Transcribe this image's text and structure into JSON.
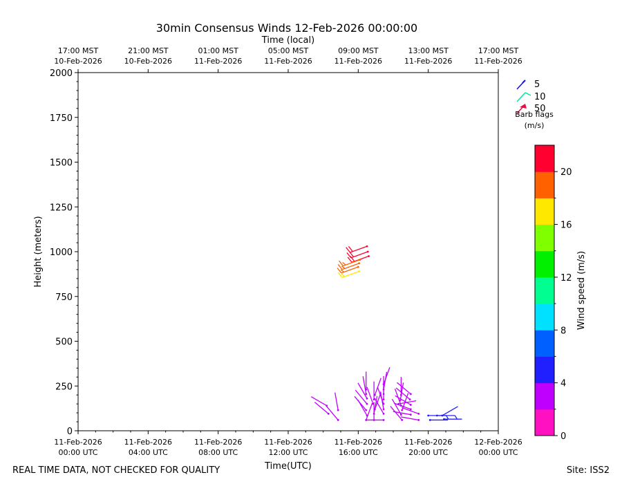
{
  "chart_data": {
    "type": "scatter",
    "title": "30min Consensus Winds 12-Feb-2026 00:00:00",
    "top_axis_title": "Time (local)",
    "xlabel": "Time(UTC)",
    "ylabel": "Height (meters)",
    "ylim": [
      0,
      2000
    ],
    "yticks": [
      0,
      250,
      500,
      750,
      1000,
      1250,
      1500,
      1750,
      2000
    ],
    "xlim_hours": [
      0,
      48
    ],
    "bottom_ticks": [
      {
        "hour": 0,
        "line1": "11-Feb-2026",
        "line2": "00:00 UTC"
      },
      {
        "hour": 8,
        "line1": "11-Feb-2026",
        "line2": "04:00 UTC"
      },
      {
        "hour": 16,
        "line1": "11-Feb-2026",
        "line2": "08:00 UTC"
      },
      {
        "hour": 24,
        "line1": "11-Feb-2026",
        "line2": "12:00 UTC"
      },
      {
        "hour": 32,
        "line1": "11-Feb-2026",
        "line2": "16:00 UTC"
      },
      {
        "hour": 40,
        "line1": "11-Feb-2026",
        "line2": "20:00 UTC"
      },
      {
        "hour": 48,
        "line1": "12-Feb-2026",
        "line2": "00:00 UTC"
      }
    ],
    "top_ticks": [
      {
        "hour": 0,
        "line1": "17:00 MST",
        "line2": "10-Feb-2026"
      },
      {
        "hour": 8,
        "line1": "21:00 MST",
        "line2": "10-Feb-2026"
      },
      {
        "hour": 16,
        "line1": "01:00 MST",
        "line2": "11-Feb-2026"
      },
      {
        "hour": 24,
        "line1": "05:00 MST",
        "line2": "11-Feb-2026"
      },
      {
        "hour": 32,
        "line1": "09:00 MST",
        "line2": "11-Feb-2026"
      },
      {
        "hour": 40,
        "line1": "13:00 MST",
        "line2": "11-Feb-2026"
      },
      {
        "hour": 48,
        "line1": "17:00 MST",
        "line2": "11-Feb-2026"
      }
    ],
    "legend": {
      "placement": "top-right",
      "entries": [
        {
          "label": "5",
          "color": "#1010e0"
        },
        {
          "label": "10",
          "color": "#00e8a0"
        },
        {
          "label": "50",
          "color": "#e01040"
        }
      ],
      "caption_line1": "Barb flags",
      "caption_line2": "(m/s)"
    },
    "colorbar": {
      "label": "Wind speed (m/s)",
      "range": [
        0,
        22
      ],
      "ticks": [
        0,
        4,
        8,
        12,
        16,
        20
      ],
      "colors": [
        "#ff10c0",
        "#c000ff",
        "#2020ff",
        "#0060ff",
        "#00e0ff",
        "#00ff90",
        "#00f000",
        "#80ff00",
        "#ffe800",
        "#ff6000",
        "#ff0030"
      ]
    },
    "barbs": [
      {
        "hour": 33.0,
        "height": 1030,
        "speed": 21.0,
        "dir": 250
      },
      {
        "hour": 33.1,
        "height": 1000,
        "speed": 20.5,
        "dir": 250
      },
      {
        "hour": 33.2,
        "height": 975,
        "speed": 21.0,
        "dir": 250
      },
      {
        "hour": 32.2,
        "height": 955,
        "speed": 18.5,
        "dir": 250
      },
      {
        "hour": 32.1,
        "height": 935,
        "speed": 18.0,
        "dir": 250
      },
      {
        "hour": 32.0,
        "height": 915,
        "speed": 18.0,
        "dir": 250
      },
      {
        "hour": 32.1,
        "height": 890,
        "speed": 17.5,
        "dir": 250
      },
      {
        "hour": 28.4,
        "height": 140,
        "speed": 3.0,
        "dir": 300
      },
      {
        "hour": 28.6,
        "height": 95,
        "speed": 2.5,
        "dir": 310
      },
      {
        "hour": 29.7,
        "height": 115,
        "speed": 2.0,
        "dir": 350
      },
      {
        "hour": 29.7,
        "height": 60,
        "speed": 2.5,
        "dir": 320
      },
      {
        "hour": 32.9,
        "height": 230,
        "speed": 2.0,
        "dir": 360
      },
      {
        "hour": 32.9,
        "height": 205,
        "speed": 2.0,
        "dir": 350
      },
      {
        "hour": 33.0,
        "height": 180,
        "speed": 2.5,
        "dir": 330
      },
      {
        "hour": 33.0,
        "height": 150,
        "speed": 3.0,
        "dir": 320
      },
      {
        "hour": 32.9,
        "height": 115,
        "speed": 2.5,
        "dir": 320
      },
      {
        "hour": 33.0,
        "height": 85,
        "speed": 2.0,
        "dir": 330
      },
      {
        "hour": 32.9,
        "height": 60,
        "speed": 2.0,
        "dir": 20
      },
      {
        "hour": 33.9,
        "height": 200,
        "speed": 2.0,
        "dir": 20
      },
      {
        "hour": 33.8,
        "height": 175,
        "speed": 2.0,
        "dir": 0
      },
      {
        "hour": 33.7,
        "height": 150,
        "speed": 2.0,
        "dir": 340
      },
      {
        "hour": 33.9,
        "height": 120,
        "speed": 2.0,
        "dir": 20
      },
      {
        "hour": 33.8,
        "height": 95,
        "speed": 3.0,
        "dir": 10
      },
      {
        "hour": 33.8,
        "height": 60,
        "speed": 2.0,
        "dir": 0
      },
      {
        "hour": 34.9,
        "height": 260,
        "speed": 2.0,
        "dir": 20
      },
      {
        "hour": 34.9,
        "height": 230,
        "speed": 2.0,
        "dir": 10
      },
      {
        "hour": 34.9,
        "height": 205,
        "speed": 2.0,
        "dir": 0
      },
      {
        "hour": 34.9,
        "height": 175,
        "speed": 2.0,
        "dir": 0
      },
      {
        "hour": 34.9,
        "height": 150,
        "speed": 2.0,
        "dir": 340
      },
      {
        "hour": 34.9,
        "height": 120,
        "speed": 2.0,
        "dir": 350
      },
      {
        "hour": 34.9,
        "height": 95,
        "speed": 2.0,
        "dir": 330
      },
      {
        "hour": 34.9,
        "height": 60,
        "speed": 2.0,
        "dir": 270
      },
      {
        "hour": 36.6,
        "height": 150,
        "speed": 3.5,
        "dir": 80
      },
      {
        "hour": 36.9,
        "height": 200,
        "speed": 2.0,
        "dir": 0
      },
      {
        "hour": 36.8,
        "height": 170,
        "speed": 2.0,
        "dir": 10
      },
      {
        "hour": 36.9,
        "height": 140,
        "speed": 2.0,
        "dir": 340
      },
      {
        "hour": 37.0,
        "height": 115,
        "speed": 2.0,
        "dir": 20
      },
      {
        "hour": 36.9,
        "height": 90,
        "speed": 2.0,
        "dir": 330
      },
      {
        "hour": 37.0,
        "height": 60,
        "speed": 2.0,
        "dir": 320
      },
      {
        "hour": 38.0,
        "height": 205,
        "speed": 2.0,
        "dir": 310
      },
      {
        "hour": 37.9,
        "height": 175,
        "speed": 2.0,
        "dir": 310
      },
      {
        "hour": 38.0,
        "height": 145,
        "speed": 2.0,
        "dir": 300
      },
      {
        "hour": 38.0,
        "height": 120,
        "speed": 2.0,
        "dir": 290
      },
      {
        "hour": 38.0,
        "height": 90,
        "speed": 2.5,
        "dir": 280
      },
      {
        "hour": 38.9,
        "height": 95,
        "speed": 3.0,
        "dir": 290
      },
      {
        "hour": 38.9,
        "height": 60,
        "speed": 2.5,
        "dir": 280
      },
      {
        "hour": 40.0,
        "height": 85,
        "speed": 5.5,
        "dir": 90
      },
      {
        "hour": 41.0,
        "height": 85,
        "speed": 5.0,
        "dir": 90
      },
      {
        "hour": 41.6,
        "height": 85,
        "speed": 4.5,
        "dir": 60
      },
      {
        "hour": 40.2,
        "height": 60,
        "speed": 4.0,
        "dir": 90
      },
      {
        "hour": 41.8,
        "height": 65,
        "speed": 4.0,
        "dir": 90
      }
    ]
  },
  "footer": {
    "left": "REAL TIME DATA, NOT CHECKED FOR QUALITY",
    "right": "Site: ISS2"
  }
}
